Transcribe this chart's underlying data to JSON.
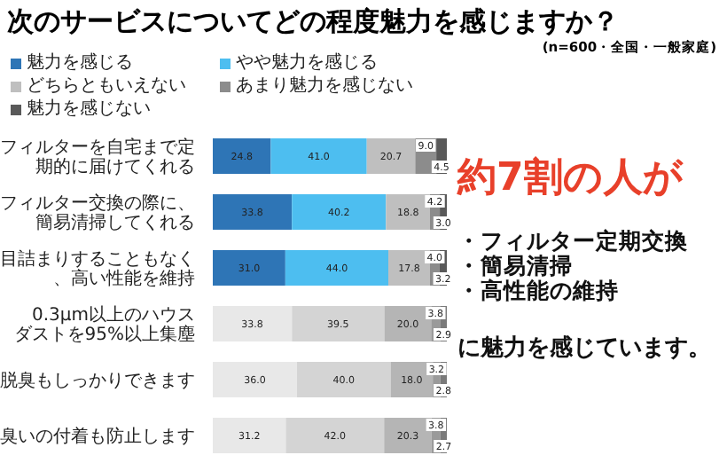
{
  "chart_data": {
    "type": "bar",
    "orientation": "horizontal",
    "stacked": true,
    "title": "次のサービスについてどの程度魅力を感じますか？",
    "categories": [
      "フィルターを自宅まで定期的に届けてくれる",
      "フィルター交換の際に、簡易清掃してくれる",
      "目詰まりすることもなく、高い性能を維持",
      "0.3μm以上のハウスダストを95%以上集塵",
      "脱臭もしっかりできます",
      "臭いの付着も防止します"
    ],
    "series": [
      {
        "name": "魅力を感じる",
        "color": "#2e75b6",
        "colors": [
          "#2e75b6",
          "#2e75b6",
          "#2e75b6",
          "#e8e8e8",
          "#e8e8e8",
          "#e8e8e8"
        ],
        "values": [
          24.8,
          33.8,
          31.0,
          33.8,
          36.0,
          31.2
        ],
        "value_labels": [
          "24.8",
          "33.8",
          "31.0",
          "33.8",
          "36.0",
          "31.2"
        ]
      },
      {
        "name": "やや魅力を感じる",
        "color": "#4dbef0",
        "colors": [
          "#4dbef0",
          "#4dbef0",
          "#4dbef0",
          "#d4d4d4",
          "#d4d4d4",
          "#d4d4d4"
        ],
        "values": [
          41.0,
          40.2,
          44.0,
          39.5,
          40.0,
          42.0
        ],
        "value_labels": [
          "41.0",
          "40.2",
          "44.0",
          "39.5",
          "40.0",
          "42.0"
        ]
      },
      {
        "name": "どちらともいえない",
        "color": "#bfbfbf",
        "colors": [
          "#bfbfbf",
          "#bfbfbf",
          "#bfbfbf",
          "#b5b5b5",
          "#b5b5b5",
          "#b5b5b5"
        ],
        "values": [
          20.7,
          18.8,
          17.8,
          20.0,
          18.0,
          20.3
        ],
        "value_labels": [
          "20.7",
          "18.8",
          "17.8",
          "20.0",
          "18.0",
          "20.3"
        ]
      },
      {
        "name": "あまり魅力を感じない",
        "color": "#8c8c8c",
        "colors": [
          "#8c8c8c",
          "#8c8c8c",
          "#8c8c8c",
          "#9a9a9a",
          "#9a9a9a",
          "#9a9a9a"
        ],
        "values": [
          9.0,
          4.2,
          4.0,
          3.8,
          3.2,
          3.8
        ],
        "value_labels": [
          "9.0",
          "4.2",
          "4.0",
          "3.8",
          "3.2",
          "3.8"
        ]
      },
      {
        "name": "魅力を感じない",
        "color": "#595959",
        "colors": [
          "#595959",
          "#595959",
          "#595959",
          "#7a7a7a",
          "#7a7a7a",
          "#7a7a7a"
        ],
        "values": [
          4.5,
          3.0,
          3.2,
          2.9,
          2.8,
          2.7
        ],
        "value_labels": [
          "4.5",
          "3.0",
          "3.2",
          "2.9",
          "2.8",
          "2.7"
        ]
      }
    ],
    "xlim": [
      0,
      100
    ],
    "tick_labels": "y",
    "data_labels": true,
    "legend": "top left",
    "grid": false,
    "annotations": [
      "(n=600・全国・一般家庭)",
      "約7割の人が",
      "・フィルター定期交換",
      "・簡易清掃",
      "・高性能の維持",
      "に魅力を感じています。"
    ]
  }
}
